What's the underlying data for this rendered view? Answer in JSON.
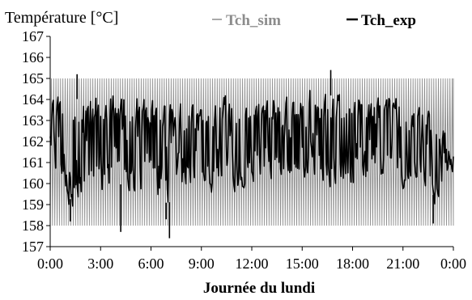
{
  "chart_data": {
    "type": "line",
    "ylabel": "Température [°C]",
    "xlabel": "Journée du lundi",
    "ylim": [
      157,
      167
    ],
    "yticks": [
      157,
      158,
      159,
      160,
      161,
      162,
      163,
      164,
      165,
      166,
      167
    ],
    "xlim_hours": [
      0,
      24
    ],
    "xtick_labels": [
      "0:00",
      "3:00",
      "6:00",
      "9:00",
      "12:00",
      "15:00",
      "18:00",
      "21:00",
      "0:00"
    ],
    "xtick_hours": [
      0,
      3,
      6,
      9,
      12,
      15,
      18,
      21,
      24
    ],
    "legend_position": "top",
    "grid": false,
    "series": [
      {
        "name": "Tch_sim",
        "color": "#8c8c8c",
        "oscillation": {
          "min": 158.0,
          "max": 165.0,
          "cycles": 175
        }
      },
      {
        "name": "Tch_exp",
        "color": "#000000",
        "envelope": {
          "hours": [
            0,
            1,
            2,
            3,
            4,
            5,
            6,
            7,
            8,
            9,
            10,
            11,
            12,
            13,
            14,
            15,
            16,
            17,
            18,
            19,
            20,
            21,
            22,
            23,
            24
          ],
          "low": [
            161.0,
            158.8,
            158.6,
            159.2,
            159.5,
            159.3,
            159.4,
            158.5,
            159.6,
            159.2,
            159.6,
            159.5,
            160.0,
            159.7,
            159.8,
            159.5,
            159.9,
            159.4,
            159.8,
            159.7,
            160.2,
            159.6,
            160.0,
            158.7,
            160.2
          ],
          "high": [
            164.8,
            164.4,
            164.6,
            164.2,
            164.6,
            164.3,
            164.4,
            164.0,
            164.2,
            163.8,
            164.4,
            164.2,
            164.6,
            164.3,
            164.4,
            164.6,
            164.9,
            164.6,
            164.5,
            164.4,
            164.4,
            164.1,
            164.2,
            163.8,
            161.6
          ]
        },
        "spikes": [
          {
            "hour": 4.2,
            "value": 157.7
          },
          {
            "hour": 7.1,
            "value": 157.4
          },
          {
            "hour": 6.9,
            "value": 158.3
          },
          {
            "hour": 1.2,
            "value": 158.2
          },
          {
            "hour": 22.8,
            "value": 158.1
          },
          {
            "hour": 16.7,
            "value": 165.4
          },
          {
            "hour": 1.6,
            "value": 165.2
          }
        ]
      }
    ]
  }
}
